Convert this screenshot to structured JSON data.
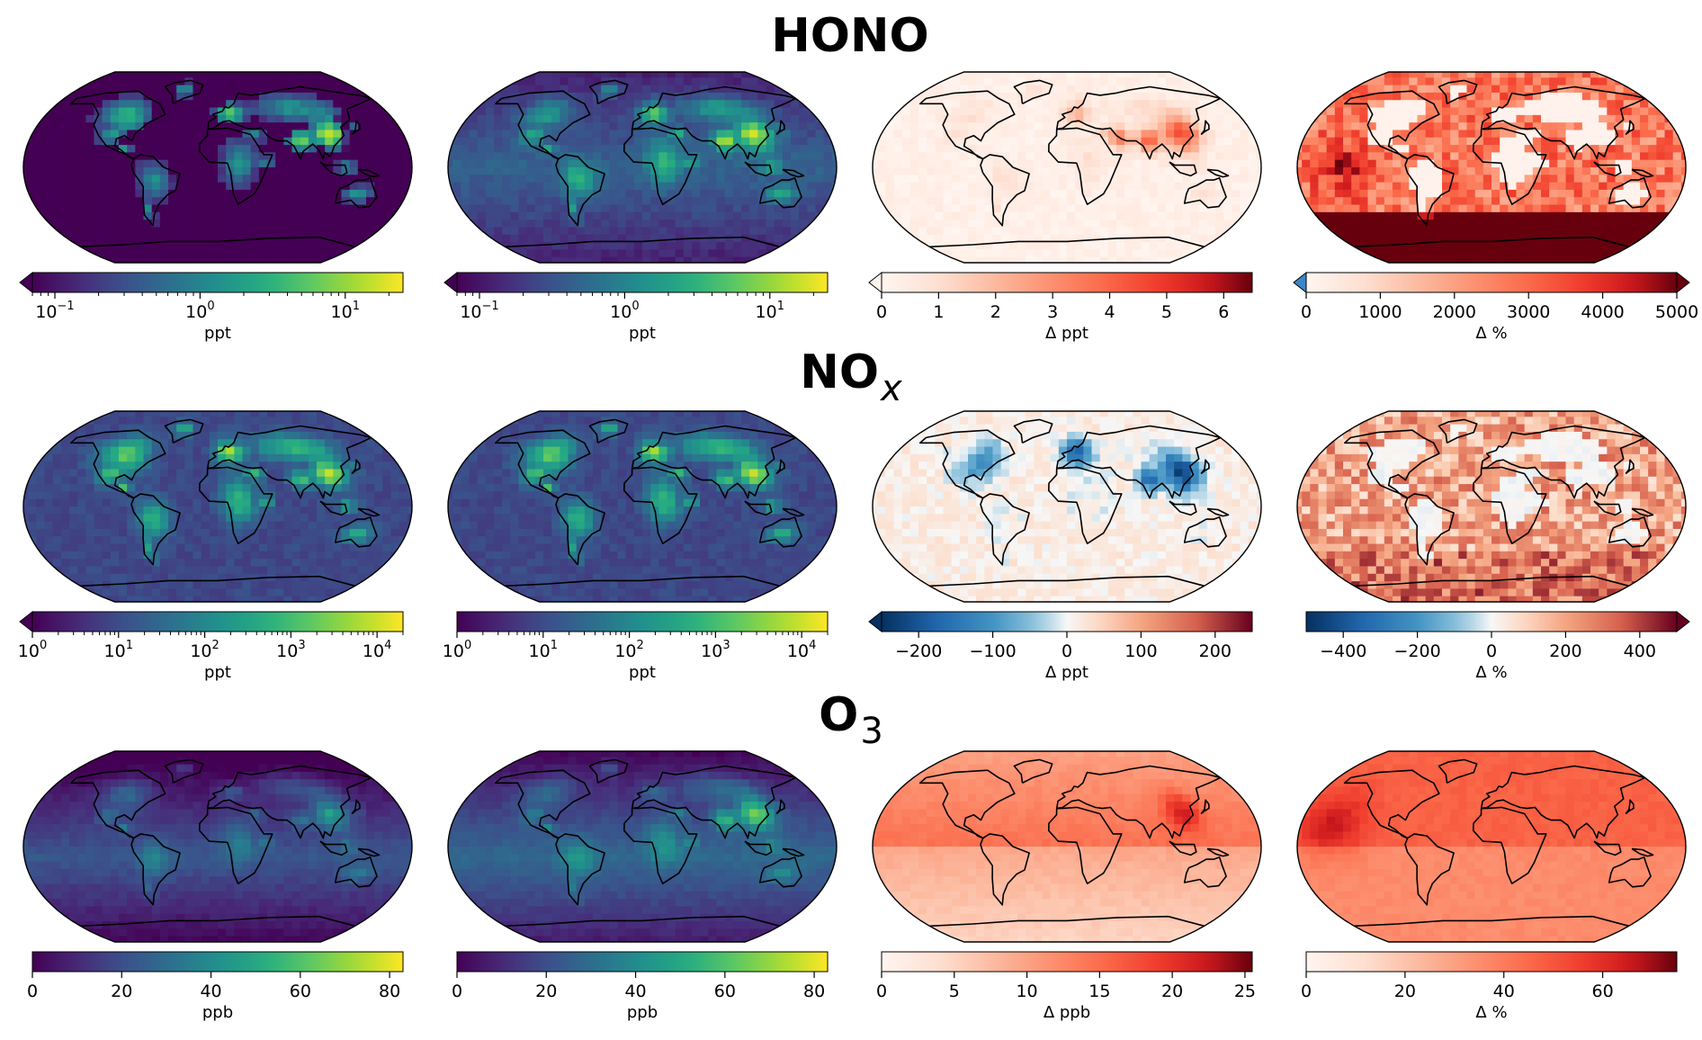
{
  "rows": [
    {
      "title": "HONO",
      "title_sub": "",
      "panels": [
        {
          "palette": "viridis",
          "fieldType": "hono_abs",
          "cmap": "viridis",
          "scale": "log",
          "extend": "min",
          "unit": "ppt",
          "ticks": [
            {
              "v": 0.1,
              "base": "10",
              "exp": "−1"
            },
            {
              "v": 1,
              "base": "10",
              "exp": "0"
            },
            {
              "v": 10,
              "base": "10",
              "exp": "1"
            }
          ],
          "range": [
            0.07,
            25
          ],
          "minor": true
        },
        {
          "palette": "viridis",
          "fieldType": "hono_abs2",
          "cmap": "viridis",
          "scale": "log",
          "extend": "min",
          "unit": "ppt",
          "ticks": [
            {
              "v": 0.1,
              "base": "10",
              "exp": "−1"
            },
            {
              "v": 1,
              "base": "10",
              "exp": "0"
            },
            {
              "v": 10,
              "base": "10",
              "exp": "1"
            }
          ],
          "range": [
            0.07,
            25
          ],
          "minor": true
        },
        {
          "palette": "reds",
          "fieldType": "hono_dppt",
          "cmap": "reds",
          "scale": "linear",
          "extend": "min",
          "unit": "Δ ppt",
          "ticks": [
            {
              "v": 0,
              "t": "0"
            },
            {
              "v": 1,
              "t": "1"
            },
            {
              "v": 2,
              "t": "2"
            },
            {
              "v": 3,
              "t": "3"
            },
            {
              "v": 4,
              "t": "4"
            },
            {
              "v": 5,
              "t": "5"
            },
            {
              "v": 6,
              "t": "6"
            }
          ],
          "range": [
            0,
            6.5
          ]
        },
        {
          "palette": "reds",
          "fieldType": "hono_dpct",
          "cmap": "reds",
          "scale": "linear",
          "extend": "both_min_blue",
          "unit": "Δ %",
          "ticks": [
            {
              "v": 0,
              "t": "0"
            },
            {
              "v": 1000,
              "t": "1000"
            },
            {
              "v": 2000,
              "t": "2000"
            },
            {
              "v": 3000,
              "t": "3000"
            },
            {
              "v": 4000,
              "t": "4000"
            },
            {
              "v": 5000,
              "t": "5000"
            }
          ],
          "range": [
            0,
            5000
          ]
        }
      ]
    },
    {
      "title": "NO",
      "title_sub": "x",
      "panels": [
        {
          "palette": "viridis",
          "fieldType": "nox_abs",
          "cmap": "viridis",
          "scale": "log",
          "extend": "min",
          "unit": "ppt",
          "ticks": [
            {
              "v": 1,
              "base": "10",
              "exp": "0"
            },
            {
              "v": 10,
              "base": "10",
              "exp": "1"
            },
            {
              "v": 100,
              "base": "10",
              "exp": "2"
            },
            {
              "v": 1000,
              "base": "10",
              "exp": "3"
            },
            {
              "v": 10000,
              "base": "10",
              "exp": "4"
            }
          ],
          "range": [
            1,
            20000
          ],
          "minor": true
        },
        {
          "palette": "viridis",
          "fieldType": "nox_abs",
          "cmap": "viridis",
          "scale": "log",
          "extend": "none",
          "unit": "ppt",
          "ticks": [
            {
              "v": 1,
              "base": "10",
              "exp": "0"
            },
            {
              "v": 10,
              "base": "10",
              "exp": "1"
            },
            {
              "v": 100,
              "base": "10",
              "exp": "2"
            },
            {
              "v": 1000,
              "base": "10",
              "exp": "3"
            },
            {
              "v": 10000,
              "base": "10",
              "exp": "4"
            }
          ],
          "range": [
            1,
            20000
          ],
          "minor": true
        },
        {
          "palette": "rdbu",
          "fieldType": "nox_dppt",
          "cmap": "rdbu",
          "scale": "linear",
          "extend": "min",
          "unit": "Δ ppt",
          "ticks": [
            {
              "v": -200,
              "t": "−200"
            },
            {
              "v": -100,
              "t": "−100"
            },
            {
              "v": 0,
              "t": "0"
            },
            {
              "v": 100,
              "t": "100"
            },
            {
              "v": 200,
              "t": "200"
            }
          ],
          "range": [
            -250,
            250
          ]
        },
        {
          "palette": "rdbu",
          "fieldType": "nox_dpct",
          "cmap": "rdbu",
          "scale": "linear",
          "extend": "max",
          "unit": "Δ %",
          "ticks": [
            {
              "v": -400,
              "t": "−400"
            },
            {
              "v": -200,
              "t": "−200"
            },
            {
              "v": 0,
              "t": "0"
            },
            {
              "v": 200,
              "t": "200"
            },
            {
              "v": 400,
              "t": "400"
            }
          ],
          "range": [
            -500,
            500
          ]
        }
      ]
    },
    {
      "title": "O",
      "title_sub": "3",
      "panels": [
        {
          "palette": "viridis",
          "fieldType": "o3_abs",
          "cmap": "viridis",
          "scale": "linear",
          "extend": "none",
          "unit": "ppb",
          "ticks": [
            {
              "v": 0,
              "t": "0"
            },
            {
              "v": 20,
              "t": "20"
            },
            {
              "v": 40,
              "t": "40"
            },
            {
              "v": 60,
              "t": "60"
            },
            {
              "v": 80,
              "t": "80"
            }
          ],
          "range": [
            0,
            83
          ]
        },
        {
          "palette": "viridis",
          "fieldType": "o3_abs2",
          "cmap": "viridis",
          "scale": "linear",
          "extend": "none",
          "unit": "ppb",
          "ticks": [
            {
              "v": 0,
              "t": "0"
            },
            {
              "v": 20,
              "t": "20"
            },
            {
              "v": 40,
              "t": "40"
            },
            {
              "v": 60,
              "t": "60"
            },
            {
              "v": 80,
              "t": "80"
            }
          ],
          "range": [
            0,
            83
          ]
        },
        {
          "palette": "reds",
          "fieldType": "o3_dppb",
          "cmap": "reds",
          "scale": "linear",
          "extend": "none",
          "unit": "Δ ppb",
          "ticks": [
            {
              "v": 0,
              "t": "0"
            },
            {
              "v": 5,
              "t": "5"
            },
            {
              "v": 10,
              "t": "10"
            },
            {
              "v": 15,
              "t": "15"
            },
            {
              "v": 20,
              "t": "20"
            },
            {
              "v": 25,
              "t": "25"
            }
          ],
          "range": [
            0,
            25.5
          ]
        },
        {
          "palette": "reds",
          "fieldType": "o3_dpct",
          "cmap": "reds",
          "scale": "linear",
          "extend": "none",
          "unit": "Δ %",
          "ticks": [
            {
              "v": 0,
              "t": "0"
            },
            {
              "v": 20,
              "t": "20"
            },
            {
              "v": 40,
              "t": "40"
            },
            {
              "v": 60,
              "t": "60"
            }
          ],
          "range": [
            0,
            75
          ]
        }
      ]
    }
  ]
}
